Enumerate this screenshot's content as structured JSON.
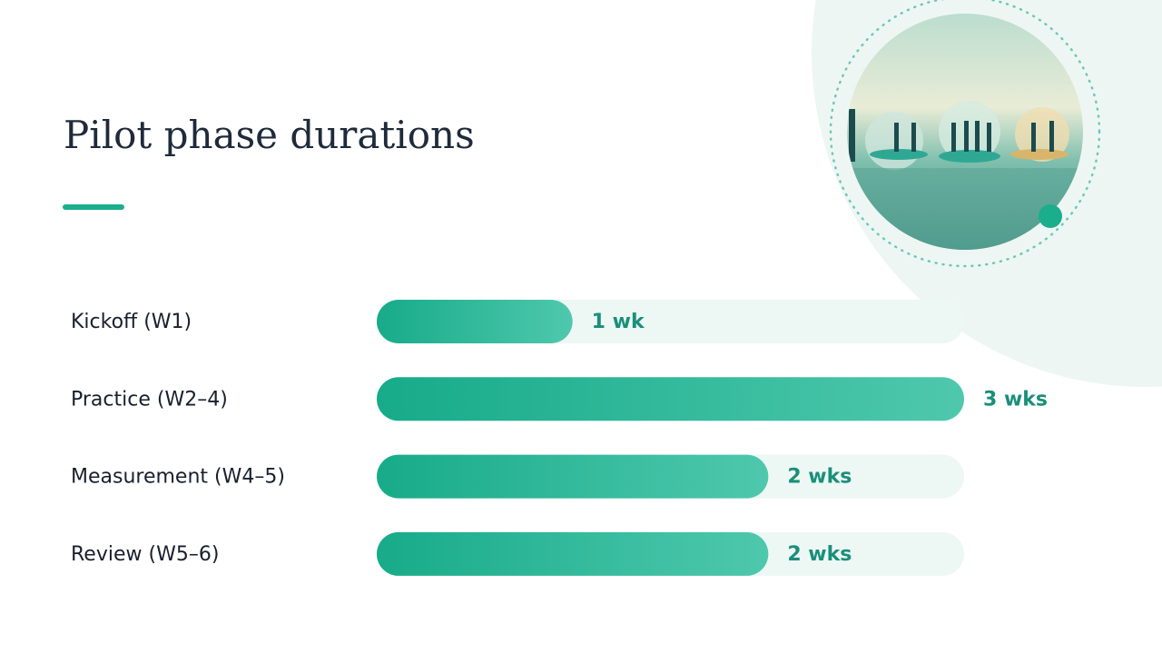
{
  "chart_data": {
    "type": "bar",
    "orientation": "horizontal",
    "title": "Pilot phase durations",
    "categories": [
      "Kickoff (W1)",
      "Practice (W2–4)",
      "Measurement (W4–5)",
      "Review (W5–6)"
    ],
    "values": [
      1,
      3,
      2,
      2
    ],
    "value_labels": [
      "1 wk",
      "3 wks",
      "2 wks",
      "2 wks"
    ],
    "xlim": [
      0,
      3
    ],
    "color": "#1aae8c"
  }
}
